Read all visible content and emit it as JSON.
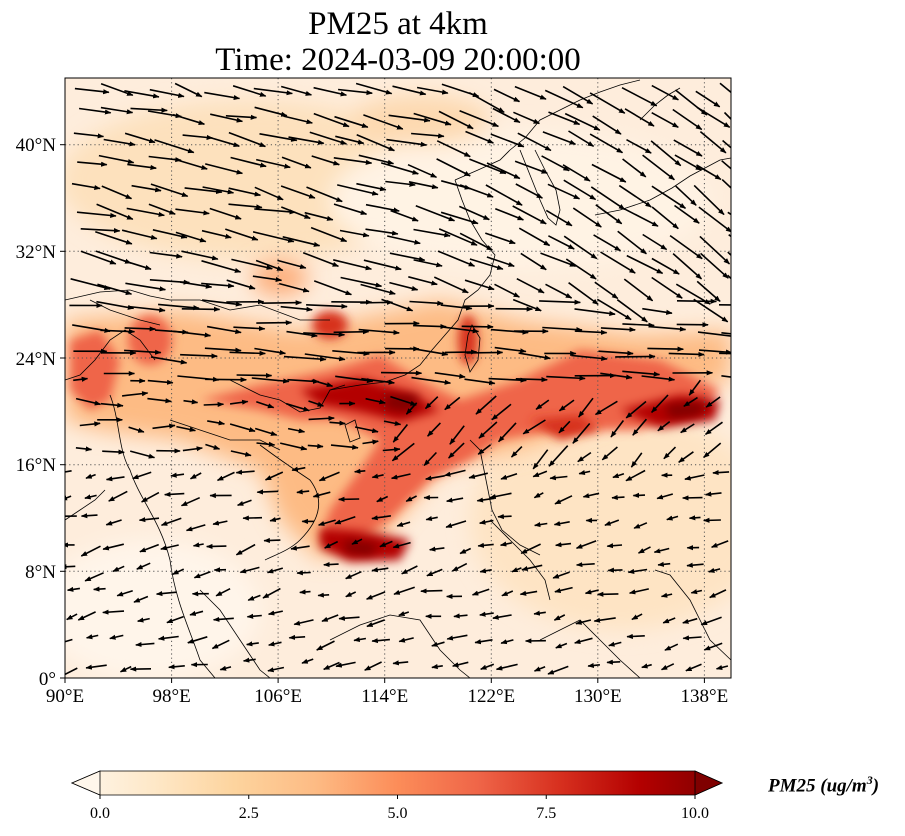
{
  "title": {
    "line1": "PM25 at 4km",
    "line2": "Time: 2024-03-09 20:00:00"
  },
  "map": {
    "extent": {
      "lon": [
        90,
        140
      ],
      "lat": [
        0,
        45
      ]
    },
    "longitude_ticks": [
      "90°E",
      "98°E",
      "106°E",
      "114°E",
      "122°E",
      "130°E",
      "138°E"
    ],
    "latitude_ticks": [
      "0°",
      "8°N",
      "16°N",
      "24°N",
      "32°N",
      "40°N"
    ],
    "gridlines": "dotted",
    "overlay": "wind vectors",
    "field": "PM25"
  },
  "colorbar": {
    "label": "PM25 (ug/m³)",
    "label_base": "PM25 (ug/m",
    "label_sup": "3",
    "label_end": ")",
    "ticks": [
      "0.0",
      "2.5",
      "5.0",
      "7.5",
      "10.0"
    ],
    "range": [
      0,
      10
    ],
    "extend": "both",
    "colormap": "OrRd",
    "colors": [
      "#fff7ec",
      "#fee8c8",
      "#fdd49e",
      "#fdbb84",
      "#fc8d59",
      "#ef6548",
      "#d7301f",
      "#b30000",
      "#7f0000"
    ]
  }
}
